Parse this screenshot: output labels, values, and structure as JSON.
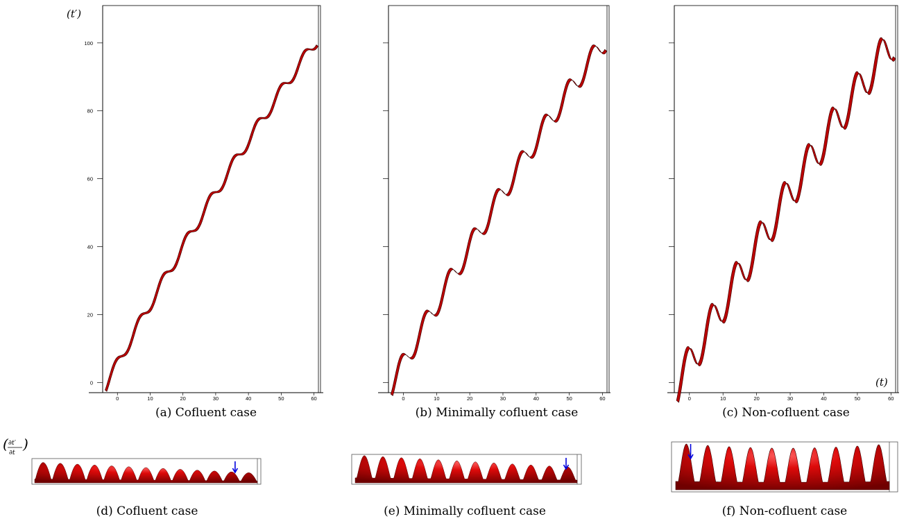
{
  "chart_data": [
    {
      "type": "line",
      "panel": "a",
      "caption": "(a) Cofluent case",
      "y_axis_label": "(t′)",
      "x_ticks": [
        "0",
        "10",
        "20",
        "30",
        "40",
        "50",
        "60"
      ],
      "y_ticks": [
        "0",
        "20",
        "40",
        "60",
        "80",
        "100"
      ],
      "xlim": [
        -4.5,
        62
      ],
      "ylim": [
        -3,
        111
      ],
      "oscillation_amplitude": 0.55,
      "line_color": "#cc0000"
    },
    {
      "type": "line",
      "panel": "b",
      "caption": "(b) Minimally cofluent case",
      "x_ticks": [
        "0",
        "10",
        "20",
        "30",
        "40",
        "50",
        "60"
      ],
      "y_ticks": [
        "",
        "",
        "",
        "",
        "",
        ""
      ],
      "xlim": [
        -4.5,
        62
      ],
      "ylim": [
        -3,
        111
      ],
      "oscillation_amplitude": 1.0,
      "line_color": "#cc0000"
    },
    {
      "type": "line",
      "panel": "c",
      "caption": "(c) Non-cofluent case",
      "x_axis_label": "(t)",
      "x_ticks": [
        "0",
        "10",
        "20",
        "30",
        "40",
        "50",
        "60"
      ],
      "y_ticks": [
        "",
        "",
        "",
        "",
        "",
        ""
      ],
      "xlim": [
        -4.5,
        62
      ],
      "ylim": [
        -3,
        111
      ],
      "oscillation_amplitude": 1.7,
      "line_color": "#cc0000"
    },
    {
      "type": "area",
      "panel": "d",
      "caption": "(d) Cofluent case",
      "y_axis_label": "(∂t′/∂t)",
      "peaks": 13,
      "arrow_position": 11.7,
      "color": "#cc0000",
      "arrow_color": "#0000dd"
    },
    {
      "type": "area",
      "panel": "e",
      "caption": "(e) Minimally cofluent case",
      "peaks": 12,
      "arrow_position": 11.4,
      "color": "#cc0000",
      "arrow_color": "#0000dd"
    },
    {
      "type": "area",
      "panel": "f",
      "caption": "(f) Non-cofluent case",
      "peaks": 10,
      "arrow_position": 0.7,
      "color": "#cc0000",
      "arrow_color": "#0000dd"
    }
  ]
}
